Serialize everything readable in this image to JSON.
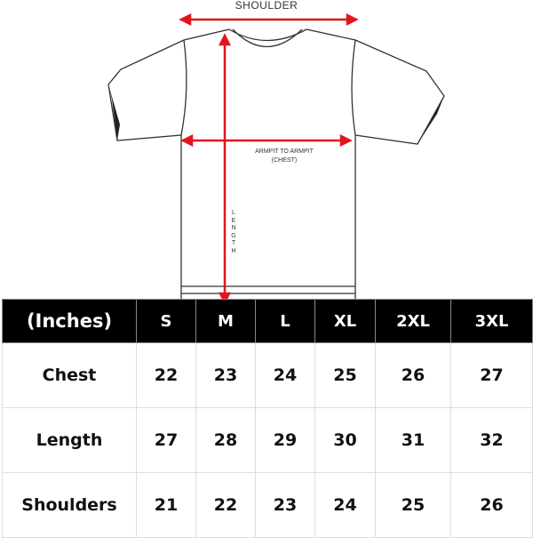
{
  "diagram": {
    "shoulder_label": "SHOULDER",
    "chest_label_line1": "ARMPIT TO ARMPIT",
    "chest_label_line2": "(CHEST)",
    "length_label": "LENGTH",
    "arrow_color": "#e0161e"
  },
  "table": {
    "unit_header": "(Inches)",
    "sizes": [
      "S",
      "M",
      "L",
      "XL",
      "2XL",
      "3XL"
    ],
    "rows": [
      {
        "label": "Chest",
        "values": [
          "22",
          "23",
          "24",
          "25",
          "26",
          "27"
        ]
      },
      {
        "label": "Length",
        "values": [
          "27",
          "28",
          "29",
          "30",
          "31",
          "32"
        ]
      },
      {
        "label": "Shoulders",
        "values": [
          "21",
          "22",
          "23",
          "24",
          "25",
          "26"
        ]
      }
    ]
  }
}
